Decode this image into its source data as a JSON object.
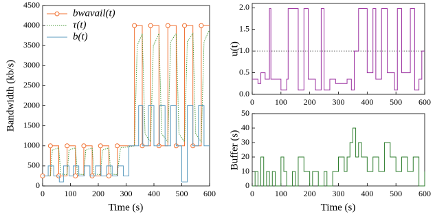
{
  "chart_data": [
    {
      "type": "line",
      "xlabel": "Time (s)",
      "ylabel": "Bandwidth (kb/s)",
      "legend": "upper left",
      "xlim": [
        0,
        600
      ],
      "xticks": [
        0,
        100,
        200,
        300,
        400,
        500,
        600
      ],
      "ylim": [
        0,
        4500
      ],
      "yticks": [
        0,
        500,
        1000,
        1500,
        2000,
        2500,
        3000,
        3500,
        4000,
        4500
      ],
      "series": [
        {
          "name": "bwavail(t)",
          "color": "#f07030",
          "style": "steps",
          "marker": "o",
          "x": [
            0,
            28,
            58,
            88,
            118,
            148,
            178,
            208,
            238,
            268,
            330,
            358,
            388,
            418,
            450,
            480,
            510,
            540,
            570
          ],
          "values": [
            250,
            1000,
            250,
            1000,
            250,
            1000,
            250,
            1000,
            250,
            1000,
            4000,
            1000,
            4000,
            1000,
            4000,
            1000,
            4000,
            1000,
            4000
          ]
        },
        {
          "name": "τ(t)",
          "color": "#4a9a3a",
          "style": "dotted",
          "x": [
            0,
            28,
            35,
            58,
            65,
            88,
            95,
            118,
            125,
            148,
            155,
            178,
            185,
            208,
            215,
            238,
            245,
            268,
            280,
            330,
            340,
            358,
            368,
            388,
            398,
            418,
            428,
            450,
            460,
            480,
            490,
            510,
            520,
            540,
            550,
            570,
            580,
            600
          ],
          "values": [
            250,
            250,
            900,
            950,
            300,
            280,
            900,
            950,
            300,
            280,
            900,
            950,
            300,
            280,
            900,
            950,
            300,
            280,
            950,
            1000,
            3500,
            3800,
            1300,
            1100,
            3500,
            3800,
            1300,
            1100,
            3600,
            3800,
            1300,
            1100,
            3600,
            3800,
            1300,
            1100,
            3600,
            3900
          ]
        },
        {
          "name": "b(t)",
          "color": "#5b9bbf",
          "style": "steps",
          "x": [
            0,
            20,
            40,
            60,
            75,
            95,
            110,
            130,
            150,
            170,
            190,
            210,
            230,
            250,
            270,
            290,
            310,
            330,
            345,
            360,
            380,
            400,
            420,
            440,
            460,
            480,
            500,
            520,
            540,
            560,
            580
          ],
          "values": [
            250,
            500,
            250,
            100,
            500,
            250,
            500,
            250,
            500,
            250,
            500,
            250,
            500,
            250,
            500,
            250,
            1000,
            1000,
            2000,
            1000,
            2000,
            1000,
            2000,
            1000,
            2000,
            1000,
            100,
            2000,
            1000,
            2000,
            1000
          ]
        }
      ]
    },
    {
      "type": "line",
      "ylabel": "u(t)",
      "hline": 1.0,
      "xlim": [
        0,
        600
      ],
      "xticks": [
        0,
        100,
        200,
        300,
        400,
        500,
        600
      ],
      "ylim": [
        0,
        2.1
      ],
      "yticks": [
        {
          "value": 0,
          "label": "0.0"
        },
        0.5,
        {
          "value": 1,
          "label": "1.0"
        },
        1.5,
        {
          "value": 2,
          "label": "2.0"
        }
      ],
      "series": [
        {
          "color": "#9b30a0",
          "style": "steps",
          "x": [
            0,
            20,
            30,
            45,
            60,
            65,
            100,
            120,
            125,
            160,
            180,
            195,
            220,
            240,
            250,
            270,
            290,
            330,
            345,
            355,
            370,
            400,
            420,
            430,
            450,
            470,
            495,
            505,
            520,
            550,
            565,
            580,
            590
          ],
          "values": [
            0.35,
            0.25,
            0.5,
            0.35,
            1.98,
            0.35,
            0.1,
            0.35,
            1.98,
            0.1,
            1.98,
            0.35,
            0.1,
            1.98,
            0.1,
            0.35,
            0.25,
            0.35,
            0.1,
            1.0,
            1.98,
            0.5,
            1.98,
            0.35,
            1.98,
            0.5,
            0.1,
            1.98,
            0.5,
            1.98,
            0.1,
            0.35,
            1.0
          ]
        }
      ]
    },
    {
      "type": "line",
      "xlabel": "Time (s)",
      "ylabel": "Buffer (s)",
      "xlim": [
        0,
        600
      ],
      "xticks": [
        0,
        100,
        200,
        300,
        400,
        500,
        600
      ],
      "ylim": [
        0,
        50
      ],
      "yticks": [
        0,
        10,
        20,
        30,
        40,
        50
      ],
      "series": [
        {
          "color": "#2e7d2e",
          "style": "steps",
          "x": [
            0,
            10,
            20,
            30,
            40,
            50,
            60,
            70,
            80,
            100,
            110,
            120,
            140,
            150,
            160,
            180,
            200,
            210,
            230,
            250,
            260,
            280,
            300,
            320,
            330,
            340,
            350,
            360,
            370,
            380,
            400,
            420,
            440,
            460,
            480,
            500,
            520,
            540,
            560,
            580,
            600
          ],
          "values": [
            0,
            10,
            0,
            20,
            0,
            10,
            0,
            10,
            0,
            20,
            10,
            0,
            10,
            0,
            20,
            10,
            0,
            10,
            0,
            10,
            0,
            10,
            20,
            10,
            20,
            30,
            40,
            20,
            30,
            20,
            10,
            20,
            10,
            30,
            20,
            10,
            20,
            10,
            20,
            0,
            10
          ]
        }
      ]
    }
  ]
}
